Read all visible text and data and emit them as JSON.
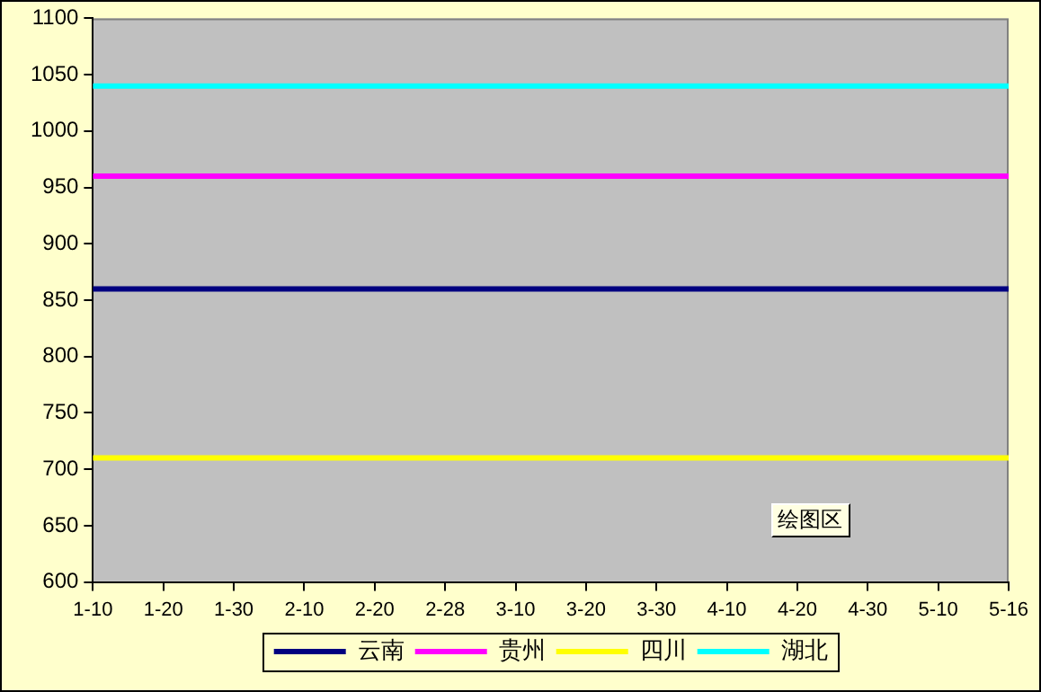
{
  "chart_data": {
    "type": "line",
    "categories": [
      "1-10",
      "1-20",
      "1-30",
      "2-10",
      "2-20",
      "2-28",
      "3-10",
      "3-20",
      "3-30",
      "4-10",
      "4-20",
      "4-30",
      "5-10",
      "5-16"
    ],
    "series": [
      {
        "name": "云南",
        "color": "#000080",
        "values": [
          860,
          860,
          860,
          860,
          860,
          860,
          860,
          860,
          860,
          860,
          860,
          860,
          860,
          860
        ]
      },
      {
        "name": "贵州",
        "color": "#ff00ff",
        "values": [
          960,
          960,
          960,
          960,
          960,
          960,
          960,
          960,
          960,
          960,
          960,
          960,
          960,
          960
        ]
      },
      {
        "name": "四川",
        "color": "#ffff00",
        "values": [
          710,
          710,
          710,
          710,
          710,
          710,
          710,
          710,
          710,
          710,
          710,
          710,
          710,
          710
        ]
      },
      {
        "name": "湖北",
        "color": "#00ffff",
        "values": [
          1040,
          1040,
          1040,
          1040,
          1040,
          1040,
          1040,
          1040,
          1040,
          1040,
          1040,
          1040,
          1040,
          1040
        ]
      }
    ],
    "ylim": [
      600,
      1100
    ],
    "yticks": [
      600,
      650,
      700,
      750,
      800,
      850,
      900,
      950,
      1000,
      1050,
      1100
    ],
    "grid": false,
    "legend": "bottom",
    "marker": "none",
    "line_style": "solid",
    "annotations": [
      "绘图区"
    ]
  }
}
